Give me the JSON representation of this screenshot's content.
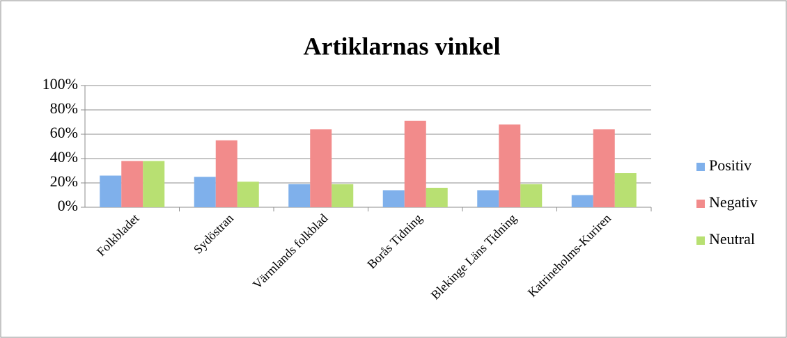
{
  "chart_data": {
    "type": "bar",
    "title": "Artiklarnas vinkel",
    "categories": [
      "Folkbladet",
      "Sydöstran",
      "Värmlands folkblad",
      "Borås Tidning",
      "Blekinge Läns Tidning",
      "Katrineholms-Kuriren"
    ],
    "series": [
      {
        "name": "Positiv",
        "color": "#7fb0eb",
        "values": [
          26,
          25,
          19,
          14,
          14,
          10
        ]
      },
      {
        "name": "Negativ",
        "color": "#f28b8b",
        "values": [
          38,
          55,
          64,
          71,
          68,
          64
        ]
      },
      {
        "name": "Neutral",
        "color": "#b8e072",
        "values": [
          38,
          21,
          19,
          16,
          19,
          28
        ]
      }
    ],
    "ylim": [
      0,
      100
    ],
    "yticks": [
      {
        "value": 0,
        "label": "0%"
      },
      {
        "value": 20,
        "label": "20%"
      },
      {
        "value": 40,
        "label": "40%"
      },
      {
        "value": 60,
        "label": "60%"
      },
      {
        "value": 80,
        "label": "80%"
      },
      {
        "value": 100,
        "label": "100%"
      }
    ],
    "grid": true,
    "legend": "right"
  }
}
